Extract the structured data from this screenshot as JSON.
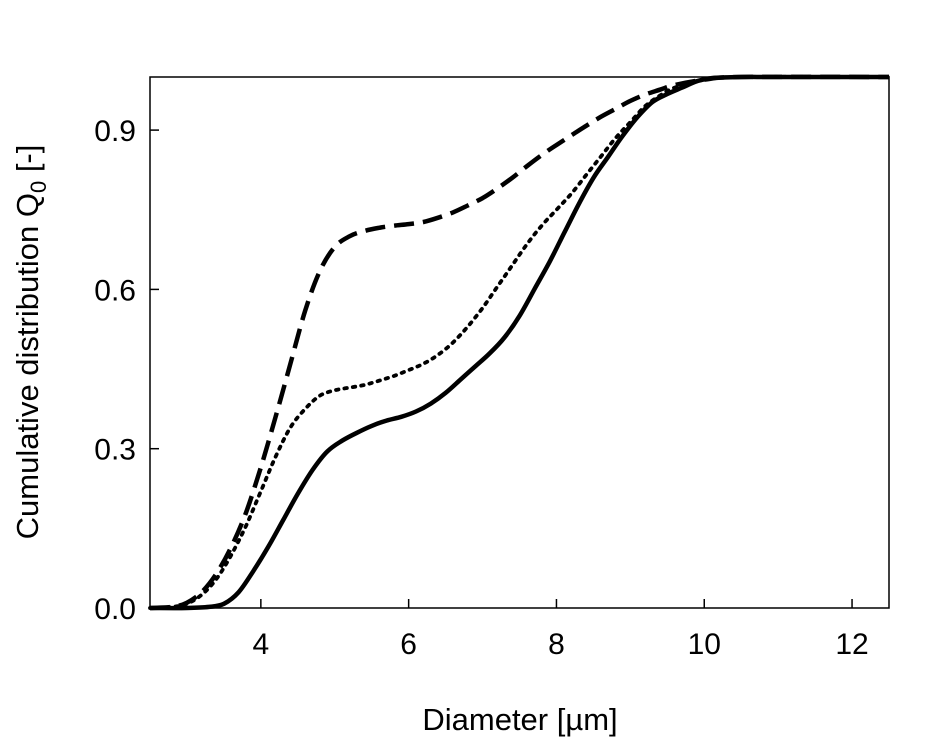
{
  "chart_data": {
    "type": "line",
    "xlabel": "Diameter [µm]",
    "ylabel_main": "Cumulative distribution Q",
    "ylabel_sub": "0",
    "ylabel_suffix": " [-]",
    "xlim": [
      2.5,
      12.5
    ],
    "ylim": [
      0,
      1.0
    ],
    "x_ticks": [
      4,
      6,
      8,
      10,
      12
    ],
    "x_tick_labels": [
      "4",
      "6",
      "8",
      "10",
      "12"
    ],
    "y_ticks": [
      0.0,
      0.3,
      0.6,
      0.9
    ],
    "y_tick_labels": [
      "0.0",
      "0.3",
      "0.6",
      "0.9"
    ],
    "grid": false,
    "series": [
      {
        "style": "solid",
        "color": "#000000",
        "x": [
          2.5,
          3.0,
          3.3,
          3.5,
          3.7,
          3.9,
          4.1,
          4.3,
          4.5,
          4.7,
          4.9,
          5.1,
          5.3,
          5.5,
          5.7,
          5.9,
          6.1,
          6.3,
          6.5,
          6.7,
          6.9,
          7.1,
          7.3,
          7.5,
          7.7,
          7.9,
          8.1,
          8.3,
          8.5,
          8.7,
          8.9,
          9.1,
          9.3,
          9.5,
          9.7,
          9.9,
          10.1,
          10.5,
          11.0,
          12.5
        ],
        "y": [
          0.0,
          0.0,
          0.002,
          0.008,
          0.03,
          0.07,
          0.115,
          0.165,
          0.215,
          0.26,
          0.295,
          0.315,
          0.33,
          0.343,
          0.353,
          0.36,
          0.37,
          0.385,
          0.405,
          0.43,
          0.455,
          0.48,
          0.51,
          0.55,
          0.6,
          0.65,
          0.705,
          0.76,
          0.81,
          0.85,
          0.89,
          0.925,
          0.953,
          0.968,
          0.98,
          0.992,
          0.998,
          1.0,
          1.0,
          1.0
        ]
      },
      {
        "style": "dotted",
        "color": "#000000",
        "x": [
          2.5,
          2.8,
          3.0,
          3.2,
          3.4,
          3.6,
          3.8,
          4.0,
          4.2,
          4.4,
          4.6,
          4.8,
          5.0,
          5.2,
          5.4,
          5.6,
          5.8,
          6.0,
          6.2,
          6.4,
          6.6,
          6.8,
          7.0,
          7.2,
          7.4,
          7.6,
          7.8,
          8.0,
          8.2,
          8.4,
          8.6,
          8.8,
          9.0,
          9.2,
          9.4,
          9.6,
          10.0,
          10.5,
          12.5
        ],
        "y": [
          0.0,
          0.002,
          0.008,
          0.025,
          0.055,
          0.1,
          0.155,
          0.22,
          0.285,
          0.34,
          0.375,
          0.4,
          0.41,
          0.415,
          0.42,
          0.428,
          0.437,
          0.448,
          0.46,
          0.477,
          0.5,
          0.53,
          0.565,
          0.605,
          0.645,
          0.685,
          0.72,
          0.75,
          0.78,
          0.815,
          0.85,
          0.885,
          0.915,
          0.945,
          0.965,
          0.98,
          0.995,
          1.0,
          1.0
        ]
      },
      {
        "style": "dashed",
        "color": "#000000",
        "x": [
          2.5,
          2.8,
          3.0,
          3.2,
          3.4,
          3.6,
          3.8,
          4.0,
          4.2,
          4.4,
          4.6,
          4.8,
          5.0,
          5.2,
          5.4,
          5.6,
          5.8,
          6.0,
          6.2,
          6.4,
          6.6,
          6.8,
          7.0,
          7.2,
          7.4,
          7.6,
          7.8,
          8.0,
          8.2,
          8.4,
          8.6,
          8.8,
          9.0,
          9.2,
          9.4,
          9.6,
          10.0,
          10.5,
          12.5
        ],
        "y": [
          0.0,
          0.002,
          0.01,
          0.03,
          0.065,
          0.115,
          0.18,
          0.265,
          0.36,
          0.46,
          0.56,
          0.635,
          0.68,
          0.7,
          0.71,
          0.716,
          0.72,
          0.723,
          0.727,
          0.735,
          0.745,
          0.758,
          0.772,
          0.79,
          0.81,
          0.832,
          0.853,
          0.872,
          0.89,
          0.908,
          0.925,
          0.94,
          0.955,
          0.967,
          0.976,
          0.985,
          0.995,
          1.0,
          1.0
        ]
      }
    ]
  }
}
